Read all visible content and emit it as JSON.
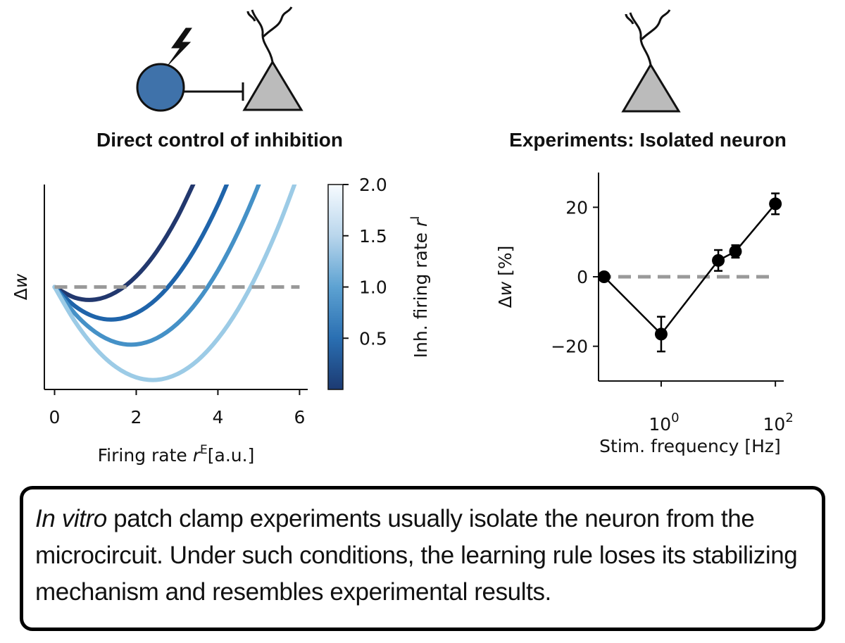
{
  "chart_data": [
    {
      "type": "line",
      "title": "Direct control of inhibition",
      "x": [
        0,
        0.5,
        1,
        1.5,
        2,
        2.5,
        3,
        3.5,
        4,
        4.5,
        5,
        5.5,
        6
      ],
      "series": [
        {
          "color": "#22386e",
          "values": [
            0,
            -0.47,
            -0.55,
            -0.23,
            0.47,
            1.56,
            3.04,
            4.91,
            null,
            null,
            null,
            null,
            null
          ]
        },
        {
          "color": "#1f64aa",
          "values": [
            0,
            -0.84,
            -1.32,
            -1.42,
            -1.15,
            -0.52,
            0.49,
            1.86,
            3.61,
            5.73,
            null,
            null,
            null
          ]
        },
        {
          "color": "#4591c7",
          "values": [
            0,
            -1.17,
            -1.98,
            -2.43,
            -2.52,
            -2.25,
            -1.62,
            -0.63,
            0.72,
            2.43,
            4.5,
            6.93,
            null
          ]
        },
        {
          "color": "#9ccbe6",
          "values": [
            0,
            -1.52,
            -2.69,
            -3.51,
            -3.97,
            -4.08,
            -3.83,
            -3.23,
            -2.27,
            -0.96,
            0.71,
            2.73,
            5.1
          ]
        }
      ],
      "xlim": [
        -0.25,
        6.2
      ],
      "ylim": [
        -4.5,
        4.5
      ],
      "xticks": [
        0,
        2,
        4,
        6
      ],
      "xlabel": [
        "Firing rate ",
        "r",
        "E",
        "[a.u.]"
      ],
      "ylabel": [
        "Δ",
        "w"
      ],
      "hline": 0,
      "hline_color": "#999999",
      "colorbar": {
        "label": [
          "Inh. firing rate ",
          "r",
          "I"
        ],
        "lim": [
          0,
          2
        ],
        "ticks": [
          0.5,
          {
            "value": 1,
            "label": "1.0"
          },
          1.5,
          {
            "value": 2,
            "label": "2.0"
          }
        ],
        "colors": [
          "#1c3a72",
          "#2a6fb2",
          "#5da2d2",
          "#b9d6ec",
          "#f7fbff"
        ]
      }
    },
    {
      "type": "scatter",
      "title": "Experiments: Isolated neuron",
      "x": [
        0.1,
        1,
        10,
        20,
        100
      ],
      "values": [
        0,
        -16.5,
        4.7,
        7.3,
        21
      ],
      "errors": [
        0,
        5,
        3,
        1.8,
        3
      ],
      "color": "#000000",
      "xscale": "log",
      "xlim": [
        0.08,
        140
      ],
      "ylim": [
        -30,
        30
      ],
      "xticks": [
        {
          "value": 1,
          "label": [
            "10",
            "0"
          ]
        },
        {
          "value": 100,
          "label": [
            "10",
            "2"
          ]
        }
      ],
      "yticks": [
        {
          "value": -20,
          "label": "−20"
        },
        0,
        20
      ],
      "xlabel": "Stim. frequency [Hz]",
      "ylabel": [
        "Δ",
        "w",
        " [%]"
      ],
      "hline": 0,
      "hline_color": "#999999"
    }
  ],
  "caption": [
    "In vitro",
    " patch clamp experiments usually isolate the neuron from the microcircuit. Under such conditions, the learning rule loses its stabilizing mechanism and resembles experimental results."
  ]
}
